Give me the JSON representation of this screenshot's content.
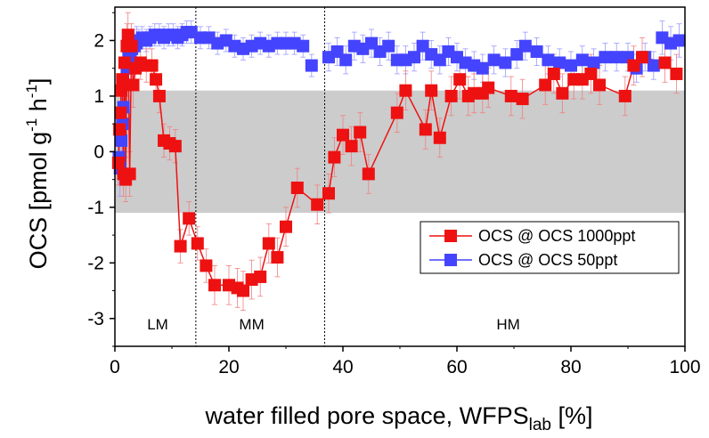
{
  "chart_data": {
    "type": "scatter",
    "xlabel_main": "water filled pore space, WFPS",
    "xlabel_sub": "lab",
    "xlabel_unit": " [%]",
    "ylabel_main": "OCS [pmol g",
    "ylabel_sup1": "-1",
    "ylabel_mid": " h",
    "ylabel_sup2": "-1",
    "ylabel_end": "]",
    "xlim": [
      0,
      100
    ],
    "ylim": [
      -3.5,
      2.6
    ],
    "x_ticks": [
      0,
      20,
      40,
      60,
      80,
      100
    ],
    "x_tick_labels": [
      "0",
      "20",
      "40",
      "60",
      "80",
      "100"
    ],
    "y_ticks": [
      -3,
      -2,
      -1,
      0,
      1,
      2
    ],
    "y_tick_labels": [
      "-3",
      "-2",
      "-1",
      "0",
      "1",
      "2"
    ],
    "shaded_band": [
      -1.1,
      1.1
    ],
    "band_color": "#cccccc",
    "vlines": [
      14.2,
      36.8
    ],
    "regions": [
      {
        "label": "LM",
        "x": 7.5,
        "y": -3.1
      },
      {
        "label": "MM",
        "x": 24,
        "y": -3.1
      },
      {
        "label": "HM",
        "x": 69,
        "y": -3.1
      }
    ],
    "legend": {
      "position": "lower-right"
    },
    "series": [
      {
        "name": "OCS @ OCS 1000ppt",
        "color": "#ee1111",
        "connected": true,
        "points": [
          [
            0.6,
            -0.2,
            0.4
          ],
          [
            0.8,
            0.4,
            0.4
          ],
          [
            1.0,
            0.7,
            0.4
          ],
          [
            1.1,
            1.1,
            0.4
          ],
          [
            1.3,
            1.3,
            0.4
          ],
          [
            1.5,
            -0.4,
            0.4
          ],
          [
            1.7,
            1.6,
            0.4
          ],
          [
            1.9,
            -0.5,
            0.4
          ],
          [
            2.1,
            1.9,
            0.4
          ],
          [
            2.3,
            2.1,
            0.4
          ],
          [
            2.6,
            -0.4,
            0.4
          ],
          [
            2.9,
            1.9,
            0.4
          ],
          [
            3.2,
            1.2,
            0.4
          ],
          [
            3.6,
            1.5,
            0.4
          ],
          [
            4.5,
            1.6,
            0.3
          ],
          [
            5.5,
            1.55,
            0.3
          ],
          [
            6.5,
            1.55,
            0.3
          ],
          [
            7.2,
            1.3,
            0.3
          ],
          [
            7.8,
            1.0,
            0.3
          ],
          [
            8.6,
            0.2,
            0.3
          ],
          [
            9.6,
            0.15,
            0.3
          ],
          [
            10.6,
            0.1,
            0.3
          ],
          [
            11.5,
            -1.7,
            0.3
          ],
          [
            13.0,
            -1.2,
            0.3
          ],
          [
            14.5,
            -1.65,
            0.3
          ],
          [
            16.0,
            -2.05,
            0.3
          ],
          [
            17.5,
            -2.4,
            0.35
          ],
          [
            20.0,
            -2.4,
            0.35
          ],
          [
            21.5,
            -2.45,
            0.35
          ],
          [
            22.5,
            -2.5,
            0.35
          ],
          [
            24.0,
            -2.3,
            0.35
          ],
          [
            25.5,
            -2.25,
            0.35
          ],
          [
            27.0,
            -1.65,
            0.35
          ],
          [
            28.5,
            -1.9,
            0.35
          ],
          [
            30.0,
            -1.35,
            0.35
          ],
          [
            32.0,
            -0.65,
            0.35
          ],
          [
            35.5,
            -0.95,
            0.35
          ],
          [
            37.5,
            -0.75,
            0.35
          ],
          [
            38.5,
            -0.1,
            0.35
          ],
          [
            40.0,
            0.3,
            0.35
          ],
          [
            41.5,
            0.1,
            0.35
          ],
          [
            43.0,
            0.35,
            0.35
          ],
          [
            44.5,
            -0.4,
            0.35
          ],
          [
            49.5,
            0.7,
            0.35
          ],
          [
            51.0,
            1.1,
            0.35
          ],
          [
            54.5,
            0.4,
            0.35
          ],
          [
            55.5,
            1.1,
            0.35
          ],
          [
            57.0,
            0.25,
            0.35
          ],
          [
            59.0,
            1.0,
            0.35
          ],
          [
            60.5,
            1.3,
            0.35
          ],
          [
            62.0,
            1.0,
            0.35
          ],
          [
            63.0,
            1.05,
            0.35
          ],
          [
            64.5,
            1.05,
            0.35
          ],
          [
            65.5,
            1.15,
            0.35
          ],
          [
            69.5,
            1.0,
            0.35
          ],
          [
            71.5,
            0.95,
            0.35
          ],
          [
            75.5,
            1.2,
            0.35
          ],
          [
            77.0,
            1.4,
            0.35
          ],
          [
            78.5,
            1.05,
            0.35
          ],
          [
            80.5,
            1.3,
            0.35
          ],
          [
            82.0,
            1.3,
            0.35
          ],
          [
            83.5,
            1.4,
            0.35
          ],
          [
            85.0,
            1.2,
            0.35
          ],
          [
            89.5,
            1.0,
            0.35
          ],
          [
            91.0,
            1.55,
            0.35
          ],
          [
            92.5,
            1.7,
            0.35
          ],
          [
            96.5,
            1.6,
            0.35
          ],
          [
            98.5,
            1.4,
            0.35
          ]
        ]
      },
      {
        "name": "OCS @ OCS 50ppt",
        "color": "#4444ff",
        "connected": false,
        "points": [
          [
            0.7,
            -0.1,
            0.5
          ],
          [
            0.9,
            -0.3,
            0.5
          ],
          [
            1.1,
            0.2,
            0.5
          ],
          [
            1.3,
            0.5,
            0.5
          ],
          [
            1.5,
            0.8,
            0.5
          ],
          [
            1.8,
            1.2,
            0.5
          ],
          [
            2.1,
            1.5,
            0.5
          ],
          [
            2.4,
            1.7,
            0.4
          ],
          [
            2.7,
            1.8,
            0.4
          ],
          [
            3.0,
            1.85,
            0.3
          ],
          [
            3.4,
            1.9,
            0.3
          ],
          [
            3.8,
            1.95,
            0.3
          ],
          [
            4.2,
            2.0,
            0.2
          ],
          [
            4.8,
            2.05,
            0.2
          ],
          [
            5.5,
            2.0,
            0.2
          ],
          [
            6.2,
            2.05,
            0.2
          ],
          [
            7.0,
            2.1,
            0.2
          ],
          [
            7.8,
            2.1,
            0.2
          ],
          [
            8.6,
            2.05,
            0.2
          ],
          [
            9.4,
            2.1,
            0.2
          ],
          [
            10.2,
            2.1,
            0.2
          ],
          [
            11.0,
            2.05,
            0.2
          ],
          [
            11.8,
            2.1,
            0.2
          ],
          [
            12.6,
            2.15,
            0.2
          ],
          [
            13.4,
            2.15,
            0.2
          ],
          [
            15.0,
            2.05,
            0.2
          ],
          [
            16.5,
            2.05,
            0.2
          ],
          [
            18.0,
            1.95,
            0.2
          ],
          [
            19.5,
            2.0,
            0.2
          ],
          [
            21.0,
            1.9,
            0.2
          ],
          [
            22.5,
            1.85,
            0.2
          ],
          [
            24.0,
            1.9,
            0.2
          ],
          [
            25.5,
            1.95,
            0.2
          ],
          [
            27.0,
            1.9,
            0.2
          ],
          [
            28.5,
            1.95,
            0.2
          ],
          [
            30.0,
            1.95,
            0.2
          ],
          [
            31.5,
            1.95,
            0.2
          ],
          [
            33.0,
            1.9,
            0.2
          ],
          [
            34.5,
            1.55,
            0.2
          ],
          [
            37.5,
            1.7,
            0.25
          ],
          [
            39.0,
            1.8,
            0.25
          ],
          [
            40.5,
            1.65,
            0.25
          ],
          [
            42.0,
            1.9,
            0.25
          ],
          [
            43.5,
            1.85,
            0.25
          ],
          [
            45.0,
            1.95,
            0.25
          ],
          [
            46.5,
            1.8,
            0.25
          ],
          [
            48.0,
            1.9,
            0.25
          ],
          [
            49.5,
            1.65,
            0.25
          ],
          [
            51.0,
            1.65,
            0.25
          ],
          [
            52.5,
            1.7,
            0.25
          ],
          [
            54.0,
            1.9,
            0.25
          ],
          [
            55.5,
            1.75,
            0.25
          ],
          [
            57.0,
            1.65,
            0.25
          ],
          [
            58.5,
            1.8,
            0.25
          ],
          [
            60.0,
            1.7,
            0.25
          ],
          [
            61.5,
            1.6,
            0.25
          ],
          [
            63.0,
            1.55,
            0.25
          ],
          [
            64.5,
            1.5,
            0.25
          ],
          [
            66.5,
            1.65,
            0.25
          ],
          [
            68.5,
            1.6,
            0.25
          ],
          [
            70.5,
            1.75,
            0.25
          ],
          [
            72.0,
            1.9,
            0.25
          ],
          [
            74.0,
            1.8,
            0.25
          ],
          [
            76.0,
            1.65,
            0.25
          ],
          [
            78.0,
            1.6,
            0.25
          ],
          [
            80.0,
            1.55,
            0.25
          ],
          [
            82.0,
            1.65,
            0.25
          ],
          [
            84.0,
            1.6,
            0.25
          ],
          [
            86.0,
            1.7,
            0.25
          ],
          [
            88.0,
            1.7,
            0.25
          ],
          [
            90.0,
            1.7,
            0.25
          ],
          [
            91.5,
            1.5,
            0.25
          ],
          [
            93.0,
            1.7,
            0.25
          ],
          [
            94.5,
            1.55,
            0.25
          ],
          [
            96.0,
            2.05,
            0.3
          ],
          [
            97.5,
            1.95,
            0.3
          ],
          [
            99.0,
            2.0,
            0.3
          ]
        ]
      }
    ]
  }
}
